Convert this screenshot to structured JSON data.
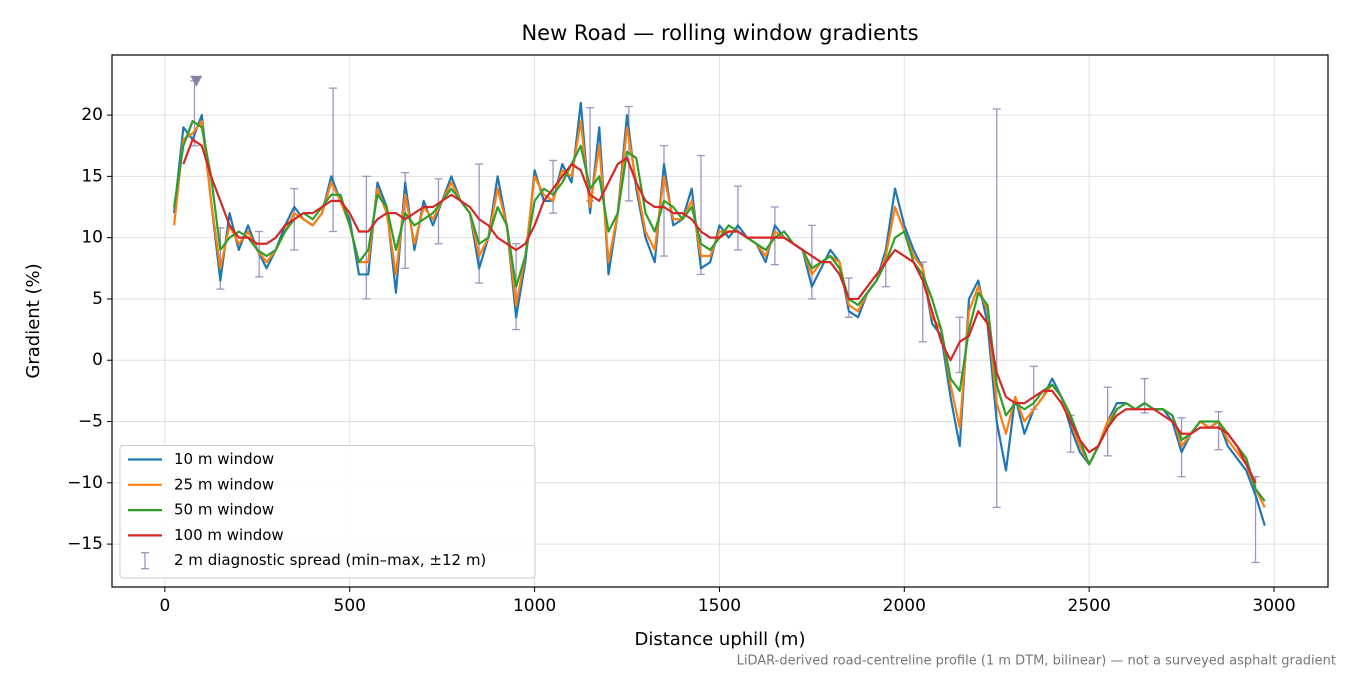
{
  "chart_data": {
    "type": "line",
    "title": "New Road — rolling window gradients",
    "xlabel": "Distance uphill (m)",
    "ylabel": "Gradient (%)",
    "footnote": "LiDAR-derived road-centreline profile (1 m DTM, bilinear) — not a surveyed asphalt gradient",
    "xlim": [
      -143,
      3146
    ],
    "ylim": [
      -18.5,
      24.9
    ],
    "xticks": [
      0,
      500,
      1000,
      1500,
      2000,
      2500,
      3000
    ],
    "yticks": [
      {
        "value": -15,
        "label": "−15"
      },
      {
        "value": -10,
        "label": "−10"
      },
      {
        "value": -5,
        "label": "−5"
      },
      0,
      5,
      10,
      15,
      20
    ],
    "grid": true,
    "legend": "lower left",
    "x": [
      0,
      25,
      50,
      75,
      100,
      125,
      150,
      175,
      200,
      225,
      250,
      275,
      300,
      325,
      350,
      375,
      400,
      425,
      450,
      475,
      500,
      525,
      550,
      575,
      600,
      625,
      650,
      675,
      700,
      725,
      750,
      775,
      800,
      825,
      850,
      875,
      900,
      925,
      950,
      975,
      1000,
      1025,
      1050,
      1075,
      1100,
      1125,
      1150,
      1175,
      1200,
      1225,
      1250,
      1275,
      1300,
      1325,
      1350,
      1375,
      1400,
      1425,
      1450,
      1475,
      1500,
      1525,
      1550,
      1575,
      1600,
      1625,
      1650,
      1675,
      1700,
      1725,
      1750,
      1775,
      1800,
      1825,
      1850,
      1875,
      1900,
      1925,
      1950,
      1975,
      2000,
      2025,
      2050,
      2075,
      2100,
      2125,
      2150,
      2175,
      2200,
      2225,
      2250,
      2275,
      2300,
      2325,
      2350,
      2375,
      2400,
      2425,
      2450,
      2475,
      2500,
      2525,
      2550,
      2575,
      2600,
      2625,
      2650,
      2675,
      2700,
      2725,
      2750,
      2775,
      2800,
      2825,
      2850,
      2875,
      2900,
      2925,
      2950,
      2975,
      3000
    ],
    "series": [
      {
        "name": "10 m window",
        "color": "#1f77b4",
        "values": [
          null,
          12,
          19,
          18,
          20,
          13,
          6.5,
          12,
          9,
          11,
          9,
          7.5,
          9,
          11,
          12.5,
          11.5,
          11,
          12,
          15,
          13,
          11.5,
          7,
          7,
          14.5,
          12.5,
          5.5,
          14.5,
          9,
          13,
          11,
          13,
          15,
          13,
          12,
          7.5,
          10,
          15,
          11,
          3.5,
          8,
          15.5,
          13,
          13,
          16,
          14.5,
          21,
          12,
          19,
          7,
          12,
          20,
          14,
          10,
          8,
          16,
          11,
          11.5,
          14,
          7.5,
          8,
          11,
          10,
          11,
          10,
          9.5,
          8,
          11,
          10,
          9.5,
          9,
          6,
          7.5,
          9,
          8,
          4,
          3.5,
          5.5,
          6.5,
          9,
          14,
          11,
          9,
          7.5,
          3,
          2,
          -3,
          -7,
          5,
          6.5,
          3,
          -5,
          -9,
          -3,
          -6,
          -4,
          -3,
          -1.5,
          -3,
          -5.5,
          -7.5,
          -8.5,
          -7,
          -5,
          -3.5,
          -3.5,
          -4,
          -3.5,
          -4,
          -4,
          -5,
          -7.5,
          -6,
          -5,
          -5.5,
          -5,
          -7,
          -8,
          -9,
          -11,
          -13.5,
          null
        ]
      },
      {
        "name": "25 m window",
        "color": "#ff7f0e",
        "values": [
          null,
          11,
          18,
          18.5,
          19.5,
          13,
          7.5,
          11,
          9.5,
          10.5,
          9,
          8,
          9,
          10.5,
          12,
          11.5,
          11,
          12,
          14.5,
          13,
          11,
          8,
          8,
          14,
          12,
          7,
          13.5,
          9.5,
          12.5,
          11.5,
          13,
          14.5,
          13,
          12,
          8.5,
          10,
          14,
          11,
          4.5,
          8.5,
          15,
          13.5,
          13,
          15.5,
          15,
          19.5,
          12.5,
          17.5,
          8,
          12,
          19,
          14.5,
          10.5,
          9,
          15,
          11.5,
          11.5,
          13,
          8.5,
          8.5,
          10.5,
          10.5,
          10.5,
          10,
          9.5,
          8.5,
          10.5,
          10,
          9.5,
          9,
          7,
          8,
          8.5,
          8,
          4.5,
          4,
          5.5,
          6.5,
          8.5,
          12.5,
          10.5,
          8.5,
          7.5,
          3.5,
          2.5,
          -2,
          -5.5,
          4,
          6,
          4,
          -3.5,
          -6,
          -3,
          -5,
          -4,
          -3,
          -2,
          -3,
          -5,
          -7,
          -8.5,
          -7,
          -5,
          -4,
          -3.5,
          -4,
          -3.5,
          -4,
          -4,
          -4.5,
          -7,
          -6,
          -5,
          -5.5,
          -5,
          -6.5,
          -7.5,
          -8.5,
          -10.5,
          -12,
          null
        ]
      },
      {
        "name": "50 m window",
        "color": "#2ca02c",
        "values": [
          null,
          12.5,
          17.5,
          19.5,
          19,
          15,
          9,
          10,
          10.5,
          10,
          9,
          8.5,
          9,
          10.5,
          11.5,
          12,
          11.5,
          12.5,
          13.5,
          13.5,
          11,
          8,
          9,
          13.5,
          12.5,
          9,
          12,
          11,
          11.5,
          12,
          13,
          14,
          13,
          12,
          9.5,
          10,
          12.5,
          11,
          6,
          8.5,
          13,
          14,
          13.5,
          14.5,
          16,
          17.5,
          14,
          15,
          10.5,
          12,
          17,
          16.5,
          12,
          10.5,
          13,
          12.5,
          11.5,
          12.5,
          9.5,
          9,
          10,
          11,
          10.5,
          10,
          9.5,
          9,
          10,
          10.5,
          9.5,
          9,
          7.5,
          8,
          8.5,
          7.5,
          5,
          4.5,
          5.5,
          6.5,
          8,
          10,
          10.5,
          8,
          7,
          5,
          2.5,
          -1.5,
          -2.5,
          2.5,
          5.5,
          4.5,
          -2,
          -4.5,
          -3.5,
          -4,
          -3.5,
          -2.5,
          -2,
          -3,
          -4.5,
          -6.5,
          -8.5,
          -7,
          -5.5,
          -4,
          -3.5,
          -4,
          -3.5,
          -4,
          -4,
          -4.5,
          -6.5,
          -6,
          -5,
          -5,
          -5,
          -6,
          -7,
          -8,
          -10.5,
          -11.5,
          null
        ]
      },
      {
        "name": "100 m window",
        "color": "#d62728",
        "values": [
          null,
          null,
          16,
          18,
          17.5,
          15,
          13,
          11,
          10,
          10,
          9.5,
          9.5,
          10,
          11,
          11.5,
          12,
          12,
          12.5,
          13,
          13,
          12,
          10.5,
          10.5,
          11.5,
          12,
          12,
          11.5,
          12,
          12.5,
          12.5,
          13,
          13.5,
          13,
          12.5,
          11.5,
          11,
          10,
          9.5,
          9,
          9.5,
          11,
          13,
          14,
          15,
          16,
          15.5,
          13.5,
          13,
          14.5,
          16,
          16.5,
          14.5,
          13,
          12.5,
          12.5,
          12,
          12,
          11.5,
          10.5,
          10,
          10,
          10.5,
          10.5,
          10,
          10,
          10,
          10,
          10,
          9.5,
          9,
          8.5,
          8,
          8,
          7,
          5,
          5,
          6,
          7,
          8,
          9,
          8.5,
          8,
          6.5,
          4,
          1.5,
          0,
          1.5,
          2,
          4,
          3,
          -1,
          -3,
          -3.5,
          -3.5,
          -3,
          -2.5,
          -2.5,
          -3.5,
          -5,
          -6.5,
          -7.5,
          -7,
          -5.5,
          -4.5,
          -4,
          -4,
          -4,
          -4,
          -4.5,
          -5,
          -6,
          -6,
          -5.5,
          -5.5,
          -5.5,
          -6,
          -7,
          -8.5,
          -10,
          null,
          null
        ]
      }
    ],
    "errorbars": {
      "name": "2 m diagnostic spread (min–max, ±12 m)",
      "color": "#9e94c0",
      "x": [
        80,
        150,
        255,
        350,
        455,
        545,
        650,
        740,
        850,
        950,
        1050,
        1150,
        1255,
        1350,
        1450,
        1550,
        1650,
        1750,
        1850,
        1950,
        2050,
        2150,
        2250,
        2350,
        2450,
        2550,
        2650,
        2750,
        2850,
        2950
      ],
      "low": [
        17.5,
        5.8,
        6.8,
        9,
        10.5,
        5,
        7.5,
        9.5,
        6.3,
        2.5,
        12,
        13,
        13,
        8.5,
        7,
        9,
        7.8,
        5,
        3.5,
        6,
        1.5,
        -1,
        -12,
        -4,
        -7.5,
        -7.8,
        -4.3,
        -9.5,
        -7.3,
        -16.5
      ],
      "high": [
        22.8,
        10.8,
        10.5,
        14,
        22.2,
        15,
        15.3,
        14.8,
        16,
        9.5,
        16.3,
        20.6,
        20.7,
        17.5,
        16.7,
        14.2,
        12.5,
        11,
        6.7,
        8.3,
        8,
        3.5,
        20.5,
        -0.5,
        -4.5,
        -2.2,
        -1.5,
        -4.7,
        -4.2,
        -9.5
      ]
    },
    "peak_marker": {
      "x": 85,
      "y": 22.8,
      "color": "#8c7fa6"
    }
  }
}
